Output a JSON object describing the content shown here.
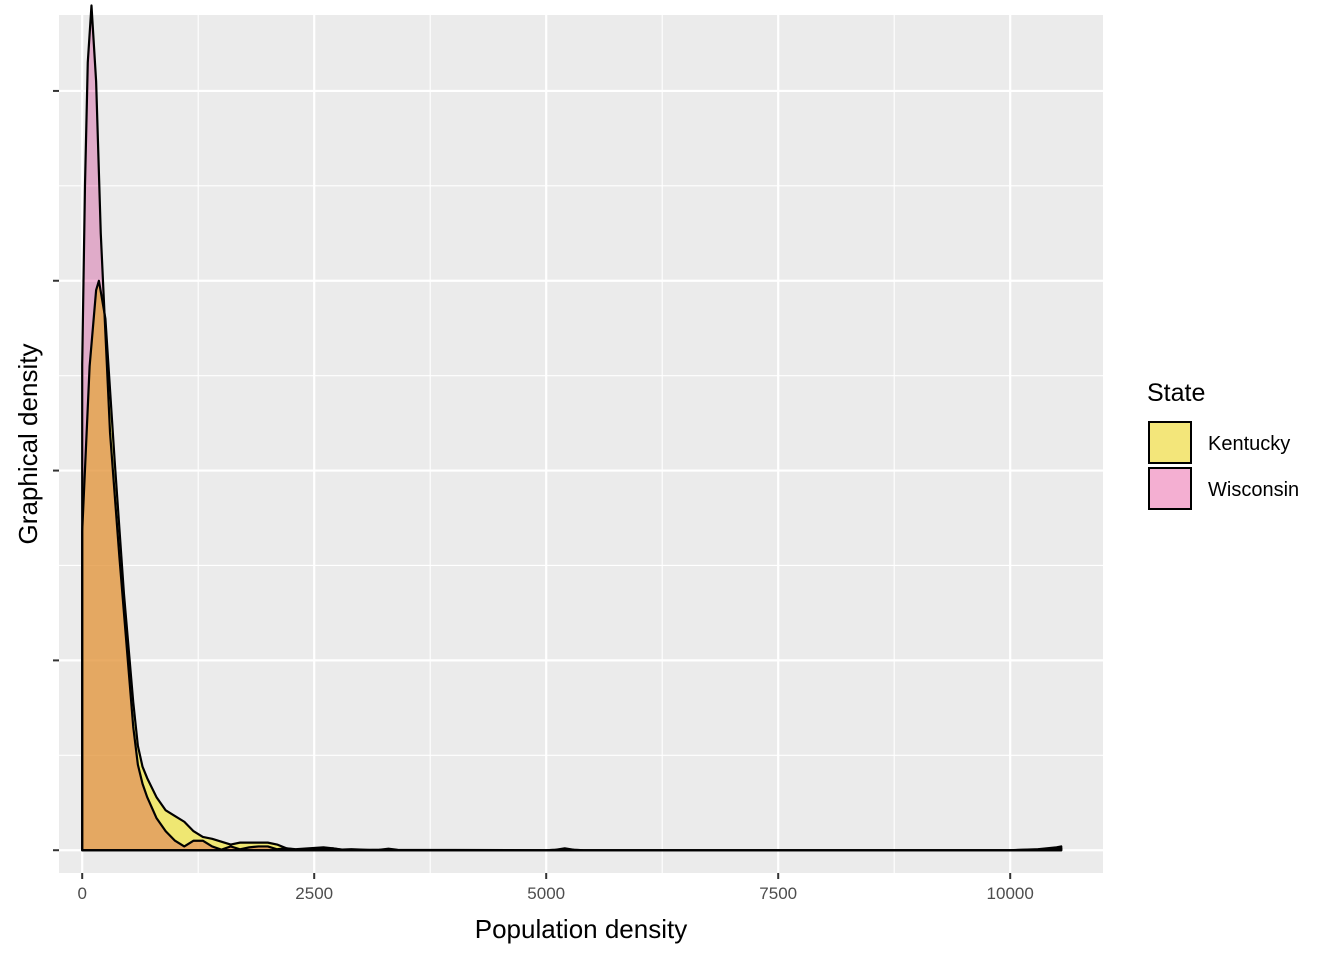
{
  "chart_data": {
    "type": "area",
    "xlabel": "Population density",
    "ylabel": "Graphical density",
    "xlim": [
      -250,
      11000
    ],
    "ylim": [
      -0.00012,
      0.0044
    ],
    "x_ticks": [
      0,
      2500,
      5000,
      7500,
      10000
    ],
    "x_tick_labels": [
      "0",
      "2500",
      "5000",
      "7500",
      "10000"
    ],
    "y_ticks": [
      0,
      0.001,
      0.002,
      0.003,
      0.004
    ],
    "y_tick_labels": [
      "",
      "",
      "",
      "",
      ""
    ],
    "grid": true,
    "legend": {
      "title": "State",
      "position": "right"
    },
    "series": [
      {
        "name": "Kentucky",
        "fill": "#f0e442",
        "x": [
          0,
          80,
          150,
          180,
          250,
          350,
          450,
          550,
          600,
          650,
          700,
          800,
          900,
          1000,
          1100,
          1200,
          1300,
          1400,
          1500,
          1600,
          1700,
          1800,
          1900,
          2000,
          2100,
          2200,
          2300,
          2500,
          2600,
          2700,
          2800,
          2900,
          3000,
          3100,
          3200,
          3300,
          3400,
          3500,
          4000,
          5000,
          5100,
          5200,
          5300,
          5400,
          6000,
          7000,
          8000,
          9000,
          10000,
          10300,
          10500,
          10550
        ],
        "y": [
          0.00168,
          0.00255,
          0.00295,
          0.003,
          0.0028,
          0.00205,
          0.00135,
          0.00078,
          0.00055,
          0.00044,
          0.00038,
          0.00028,
          0.00021,
          0.00018,
          0.00015,
          0.0001,
          7e-05,
          6e-05,
          4.5e-05,
          3e-05,
          4e-05,
          4e-05,
          4e-05,
          4e-05,
          3e-05,
          1e-05,
          5e-06,
          1.2e-05,
          1.5e-05,
          1e-05,
          3e-06,
          5e-06,
          3e-06,
          2e-06,
          2e-06,
          1e-06,
          5e-07,
          0,
          0,
          0,
          2e-06,
          5e-06,
          2e-06,
          0,
          0,
          0,
          0,
          0,
          0,
          5e-06,
          1.5e-05,
          2e-05
        ]
      },
      {
        "name": "Wisconsin",
        "fill": "#f0a0cc",
        "x": [
          0,
          30,
          60,
          100,
          150,
          200,
          300,
          400,
          500,
          550,
          600,
          650,
          700,
          800,
          900,
          1000,
          1100,
          1200,
          1300,
          1400,
          1500,
          1600,
          1700,
          1800,
          1900,
          2000,
          2100,
          2200,
          2300,
          2400,
          2600,
          2700,
          2800,
          3000,
          3200,
          3300,
          3400,
          5000,
          5100,
          5200,
          5300,
          5400,
          6000,
          7000,
          8000,
          9000,
          10000,
          10400,
          10550
        ],
        "y": [
          0.00256,
          0.0035,
          0.00415,
          0.00445,
          0.00405,
          0.00325,
          0.0022,
          0.00155,
          0.00095,
          0.00065,
          0.00045,
          0.00035,
          0.00028,
          0.00017,
          0.0001,
          5e-05,
          2e-05,
          5e-05,
          5e-05,
          2e-05,
          3e-06,
          2e-05,
          5e-06,
          1.5e-05,
          2e-05,
          2e-05,
          5e-06,
          1e-05,
          3e-06,
          3e-06,
          5e-06,
          1e-05,
          2e-06,
          0,
          2e-06,
          8e-06,
          2e-06,
          0,
          2e-06,
          1e-05,
          2e-06,
          0,
          0,
          0,
          0,
          0,
          0,
          5e-06,
          1e-05
        ]
      }
    ],
    "overlap_color": "#f7ad98"
  }
}
